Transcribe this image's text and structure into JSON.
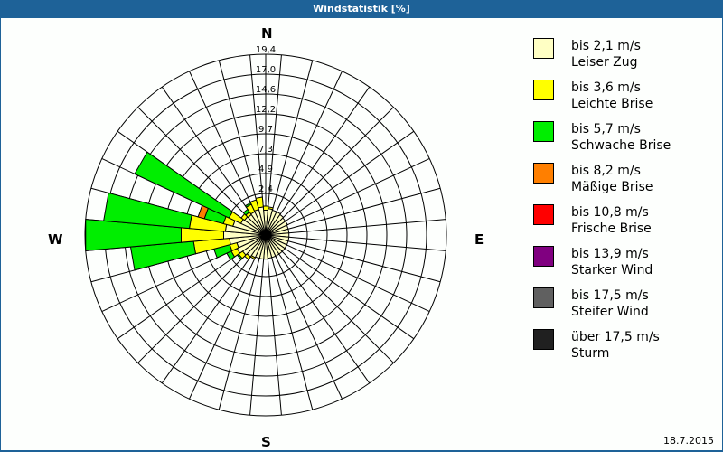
{
  "window": {
    "title": "Windstatistik [%]",
    "date": "18.7.2015"
  },
  "compass": {
    "n": "N",
    "e": "E",
    "s": "S",
    "w": "W"
  },
  "legend": [
    {
      "line1": "bis 2,1 m/s",
      "line2": "Leiser Zug",
      "color": "#ffffc4"
    },
    {
      "line1": "bis 3,6 m/s",
      "line2": "Leichte Brise",
      "color": "#ffff00"
    },
    {
      "line1": "bis 5,7 m/s",
      "line2": "Schwache Brise",
      "color": "#00ee00"
    },
    {
      "line1": "bis 8,2 m/s",
      "line2": "Mäßige Brise",
      "color": "#ff7f00"
    },
    {
      "line1": "bis 10,8 m/s",
      "line2": "Frische Brise",
      "color": "#ff0000"
    },
    {
      "line1": "bis 13,9 m/s",
      "line2": "Starker Wind",
      "color": "#800080"
    },
    {
      "line1": "bis 17,5 m/s",
      "line2": "Steifer Wind",
      "color": "#606060"
    },
    {
      "line1": "über 17,5 m/s",
      "line2": "Sturm",
      "color": "#202020"
    }
  ],
  "chart_data": {
    "type": "windrose",
    "title": "Windstatistik [%]",
    "radial_ticks": [
      "2,4",
      "4,9",
      "7,3",
      "9,7",
      "12,2",
      "14,6",
      "17,0",
      "19,4"
    ],
    "rmax": 19.4,
    "sector_width_deg": 10,
    "series": [
      "bis 2,1 m/s",
      "bis 3,6 m/s",
      "bis 5,7 m/s",
      "bis 8,2 m/s",
      "bis 10,8 m/s",
      "bis 13,9 m/s",
      "bis 17,5 m/s",
      "über 17,5 m/s"
    ],
    "sectors": [
      {
        "dir": 0,
        "cum": [
          0.4,
          0.9
        ]
      },
      {
        "dir": 10,
        "cum": [
          0.6,
          0.8
        ]
      },
      {
        "dir": 20,
        "cum": [
          0.5
        ]
      },
      {
        "dir": 30,
        "cum": [
          0.5
        ]
      },
      {
        "dir": 40,
        "cum": [
          0.4
        ]
      },
      {
        "dir": 50,
        "cum": [
          0.3
        ]
      },
      {
        "dir": 60,
        "cum": [
          0.3
        ]
      },
      {
        "dir": 70,
        "cum": [
          0.2
        ]
      },
      {
        "dir": 80,
        "cum": [
          0.2
        ]
      },
      {
        "dir": 90,
        "cum": [
          0.2
        ]
      },
      {
        "dir": 100,
        "cum": [
          0.2
        ]
      },
      {
        "dir": 110,
        "cum": [
          0.2
        ]
      },
      {
        "dir": 120,
        "cum": [
          0.2
        ]
      },
      {
        "dir": 130,
        "cum": [
          0.2
        ]
      },
      {
        "dir": 140,
        "cum": [
          0.2
        ]
      },
      {
        "dir": 150,
        "cum": [
          0.2
        ]
      },
      {
        "dir": 160,
        "cum": [
          0.2
        ]
      },
      {
        "dir": 170,
        "cum": [
          0.2
        ]
      },
      {
        "dir": 180,
        "cum": [
          0.3
        ]
      },
      {
        "dir": 190,
        "cum": [
          0.3
        ]
      },
      {
        "dir": 200,
        "cum": [
          0.3
        ]
      },
      {
        "dir": 210,
        "cum": [
          0.4,
          0.6
        ]
      },
      {
        "dir": 220,
        "cum": [
          0.6,
          1.0
        ]
      },
      {
        "dir": 230,
        "cum": [
          0.8,
          1.4,
          1.6
        ]
      },
      {
        "dir": 240,
        "cum": [
          1.2,
          2.0,
          2.6
        ]
      },
      {
        "dir": 250,
        "cum": [
          1.0,
          1.9,
          3.9
        ]
      },
      {
        "dir": 260,
        "cum": [
          1.8,
          6.2,
          13.9
        ]
      },
      {
        "dir": 270,
        "cum": [
          2.5,
          7.7,
          19.4
        ]
      },
      {
        "dir": 280,
        "cum": [
          2.3,
          6.7,
          17.2
        ]
      },
      {
        "dir": 290,
        "cum": [
          1.5,
          2.7,
          5.1,
          5.9
        ]
      },
      {
        "dir": 300,
        "cum": [
          0.7,
          2.3,
          15.0
        ]
      },
      {
        "dir": 310,
        "cum": [
          0.5,
          1.0
        ]
      },
      {
        "dir": 320,
        "cum": [
          0.4,
          0.8,
          1.2
        ]
      },
      {
        "dir": 330,
        "cum": [
          0.5,
          1.5,
          1.7
        ]
      },
      {
        "dir": 340,
        "cum": [
          0.6,
          1.8
        ]
      },
      {
        "dir": 350,
        "cum": [
          0.8,
          2.0
        ]
      }
    ],
    "xlabel": "",
    "ylabel": "%"
  }
}
